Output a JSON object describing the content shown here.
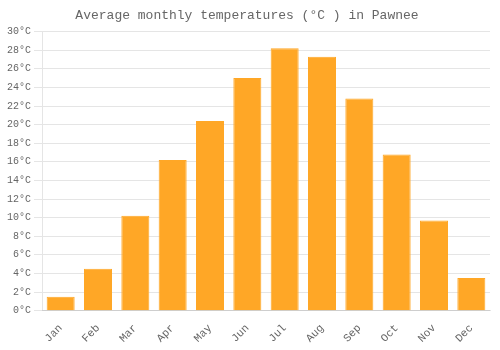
{
  "chart_data": {
    "type": "bar",
    "title": "Average monthly temperatures (°C ) in Pawnee",
    "categories": [
      "Jan",
      "Feb",
      "Mar",
      "Apr",
      "May",
      "Jun",
      "Jul",
      "Aug",
      "Sep",
      "Oct",
      "Nov",
      "Dec"
    ],
    "values": [
      1.5,
      4.5,
      10.2,
      16.2,
      20.4,
      25.0,
      28.2,
      27.3,
      22.8,
      16.8,
      9.7,
      3.5
    ],
    "color": "#FFA726",
    "ylim": [
      0,
      30
    ],
    "yticks": [
      {
        "value": 0,
        "label": "0°C"
      },
      {
        "value": 2,
        "label": "2°C"
      },
      {
        "value": 4,
        "label": "4°C"
      },
      {
        "value": 6,
        "label": "6°C"
      },
      {
        "value": 8,
        "label": "8°C"
      },
      {
        "value": 10,
        "label": "10°C"
      },
      {
        "value": 12,
        "label": "12°C"
      },
      {
        "value": 14,
        "label": "14°C"
      },
      {
        "value": 16,
        "label": "16°C"
      },
      {
        "value": 18,
        "label": "18°C"
      },
      {
        "value": 20,
        "label": "20°C"
      },
      {
        "value": 22,
        "label": "22°C"
      },
      {
        "value": 24,
        "label": "24°C"
      },
      {
        "value": 26,
        "label": "26°C"
      },
      {
        "value": 28,
        "label": "28°C"
      },
      {
        "value": 30,
        "label": "30°C"
      }
    ],
    "grid": true
  }
}
